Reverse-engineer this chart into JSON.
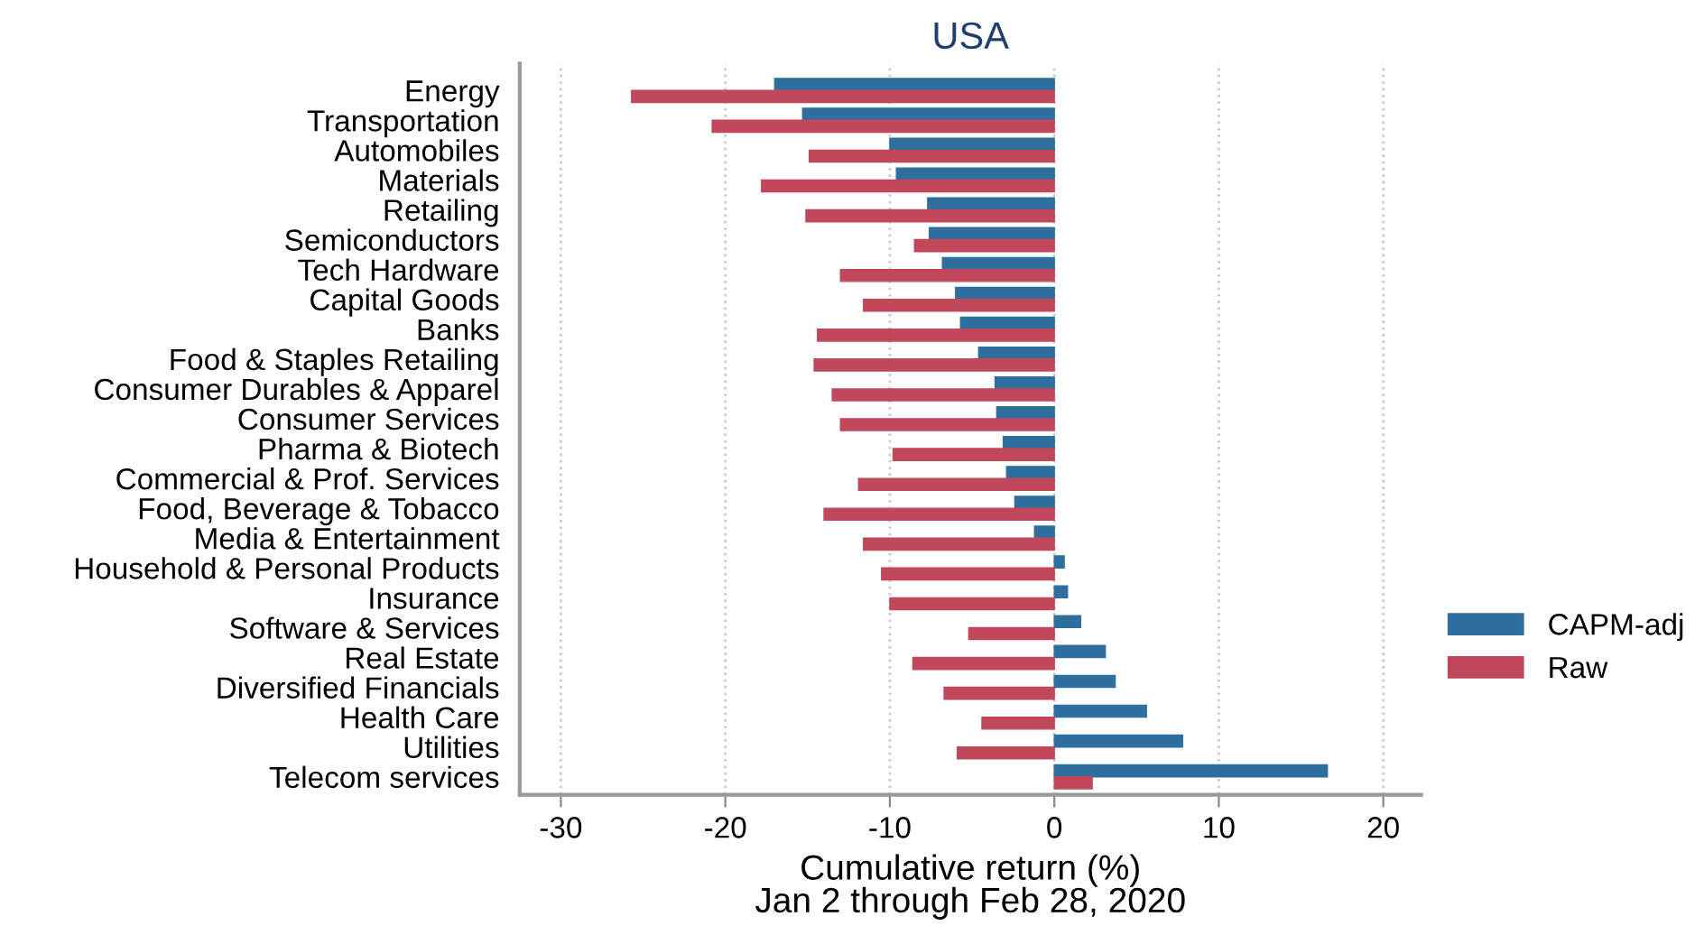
{
  "chart_data": {
    "type": "bar",
    "orientation": "horizontal",
    "title": "USA",
    "xlabel": "Cumulative return (%)\nJan 2 through Feb 28, 2020",
    "categories": [
      "Energy",
      "Transportation",
      "Automobiles",
      "Materials",
      "Retailing",
      "Semiconductors",
      "Tech Hardware",
      "Capital Goods",
      "Banks",
      "Food & Staples Retailing",
      "Consumer Durables & Apparel",
      "Consumer Services",
      "Pharma & Biotech",
      "Commercial & Prof. Services",
      "Food, Beverage & Tobacco",
      "Media & Entertainment",
      "Household & Personal Products",
      "Insurance",
      "Software & Services",
      "Real Estate",
      "Diversified Financials",
      "Health Care",
      "Utilities",
      "Telecom services"
    ],
    "series": [
      {
        "name": "CAPM-adj",
        "color": "#2e6f9e",
        "values": [
          -17.0,
          -15.3,
          -10.0,
          -9.6,
          -7.7,
          -7.6,
          -6.8,
          -6.0,
          -5.7,
          -4.6,
          -3.6,
          -3.5,
          -3.1,
          -2.9,
          -2.4,
          -1.2,
          0.6,
          0.8,
          1.6,
          3.1,
          3.7,
          5.6,
          7.8,
          16.6
        ]
      },
      {
        "name": "Raw",
        "color": "#c0485a",
        "values": [
          -25.7,
          -20.8,
          -14.9,
          -17.8,
          -15.1,
          -8.5,
          -13.0,
          -11.6,
          -14.4,
          -14.6,
          -13.5,
          -13.0,
          -9.8,
          -11.9,
          -14.0,
          -11.6,
          -10.5,
          -10.0,
          -5.2,
          -8.6,
          -6.7,
          -4.4,
          -5.9,
          2.3
        ]
      }
    ],
    "xlim": [
      -32.5,
      22.3
    ],
    "xticks": [
      -30,
      -20,
      -10,
      0,
      10,
      20
    ],
    "grid": "x",
    "legend": "right"
  }
}
